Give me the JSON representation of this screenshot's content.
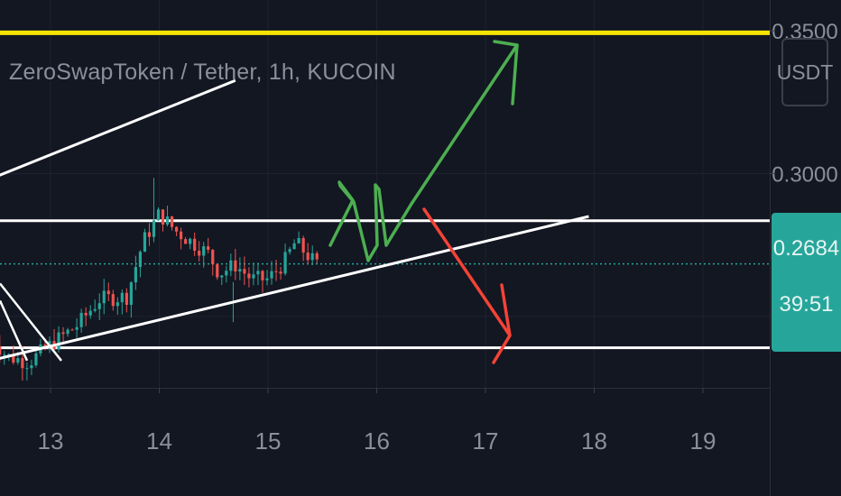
{
  "header": {
    "symbol_title": "ZeroSwapToken / Tether, 1h, KUCOIN"
  },
  "price_axis": {
    "unit": "USDT",
    "tick_labels": [
      "0.3500",
      "0.3000"
    ],
    "current_price": "0.2684",
    "countdown": "39:51"
  },
  "colors": {
    "background": "#131722",
    "up_candle": "#26a69a",
    "down_candle": "#ef5350",
    "resistance_line": "#f5e400",
    "level_line": "#ffffff",
    "bull_arrow": "#4caf50",
    "bear_arrow": "#f44336",
    "price_badge": "#26a69a"
  },
  "chart_data": {
    "type": "candlestick",
    "title": "ZeroSwapToken / Tether, 1h, KUCOIN",
    "x_ticks": [
      "13",
      "14",
      "15",
      "16",
      "17",
      "18",
      "19"
    ],
    "y_ticks": [
      0.35,
      0.3
    ],
    "ylim": [
      0.225,
      0.357
    ],
    "current_price": 0.2684,
    "grid": true,
    "candles_summary": {
      "trend": "rising from about 0.235 on the 12th to about 0.30 high on the 14th, consolidating near 0.27 on the 15th",
      "day13_range": [
        0.233,
        0.252
      ],
      "day14_high": 0.2985,
      "day15_close": 0.2684
    },
    "horizontal_levels": [
      {
        "price": 0.3493,
        "color": "yellow"
      },
      {
        "price": 0.2835,
        "color": "white"
      },
      {
        "price": 0.239,
        "color": "white"
      }
    ],
    "trendlines": [
      {
        "from": {
          "day": 12.0,
          "price": 0.2913
        },
        "to": {
          "day": 14.7,
          "price": 0.3326
        }
      },
      {
        "from": {
          "day": 12.5,
          "price": 0.235
        },
        "to": {
          "day": 17.95,
          "price": 0.285
        }
      }
    ],
    "scenarios": [
      {
        "direction": "up",
        "color": "green",
        "target_price": 0.345
      },
      {
        "direction": "down",
        "color": "red",
        "target_price": 0.24
      }
    ]
  }
}
